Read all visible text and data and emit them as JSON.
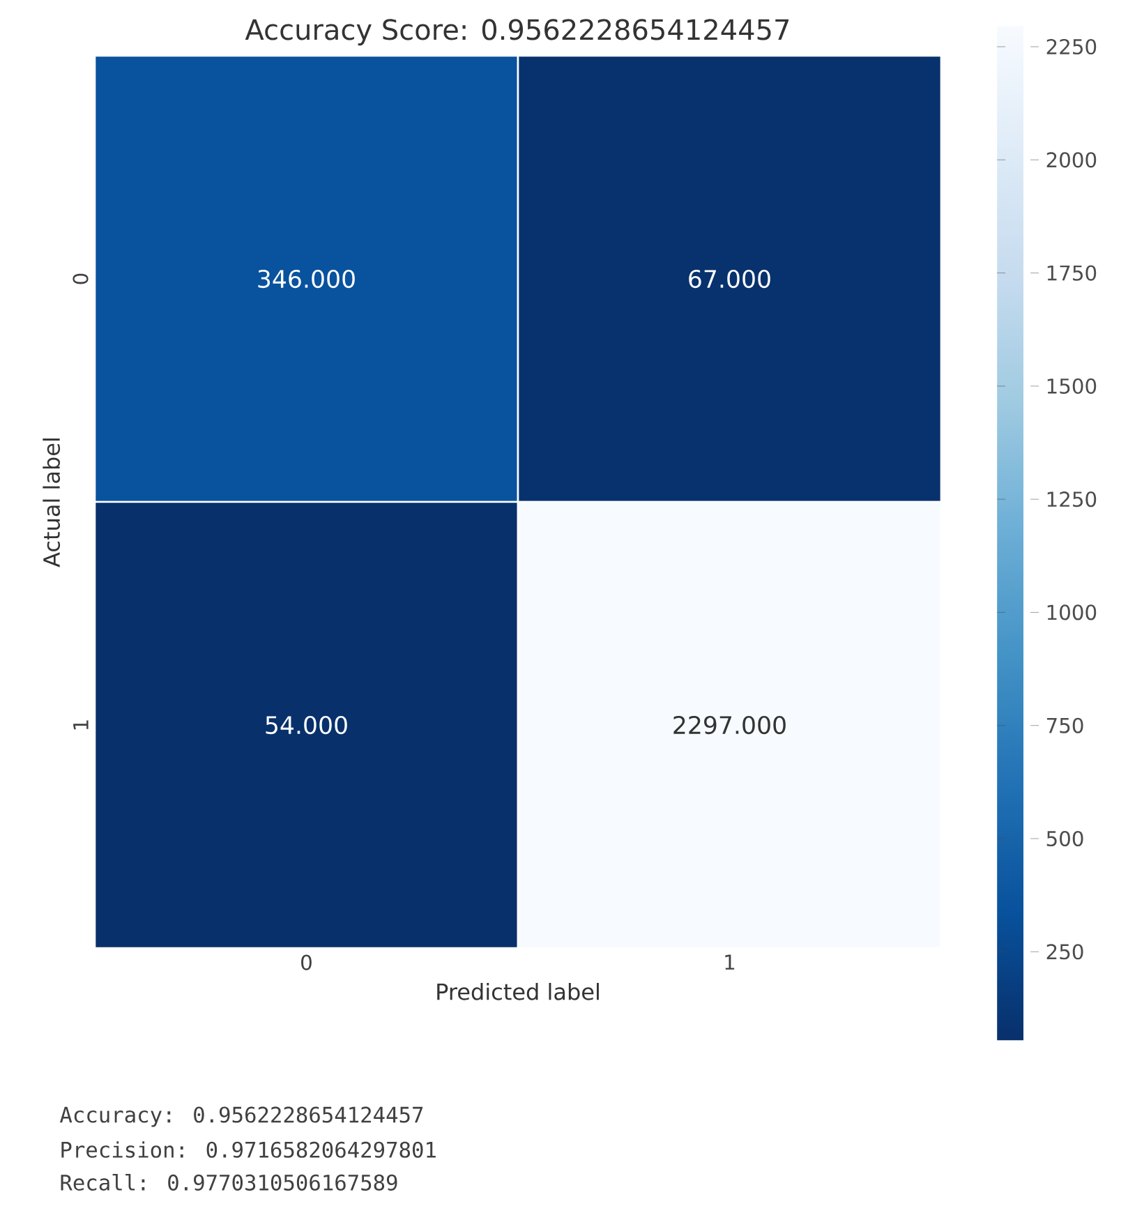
{
  "chart_data": {
    "type": "heatmap",
    "title": "Accuracy Score: 0.9562228654124457",
    "xlabel": "Predicted label",
    "ylabel": "Actual label",
    "categories": [
      "0",
      "1"
    ],
    "y_categories": [
      "0",
      "1"
    ],
    "cells": [
      [
        346,
        67
      ],
      [
        54,
        2297
      ]
    ],
    "cell_labels": [
      [
        "346.000",
        "67.000"
      ],
      [
        "54.000",
        "2297.000"
      ]
    ],
    "clim": [
      54,
      2297
    ],
    "cticks": [
      250,
      500,
      750,
      1000,
      1250,
      1500,
      1750,
      2000,
      2250
    ],
    "annotations": [
      "Accuracy: 0.9562228654124457",
      "Precision: 0.9716582064297801",
      "Recall: 0.9770310506167589"
    ]
  }
}
